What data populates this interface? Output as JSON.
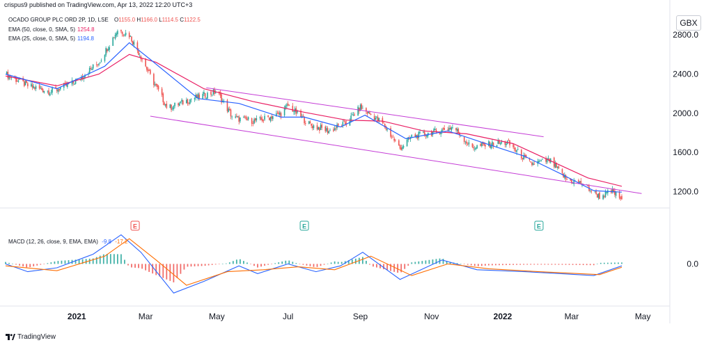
{
  "header": {
    "publisher": "crispus9 published on TradingView.com, Apr 13, 2022 12:20 UTC+3"
  },
  "legend": {
    "symbol": "OCADO GROUP PLC ORD 2P, 1D, LSE",
    "ohlc": [
      {
        "key": "O",
        "value": "1155.0"
      },
      {
        "key": "H",
        "value": "1166.0"
      },
      {
        "key": "L",
        "value": "1114.5"
      },
      {
        "key": "C",
        "value": "1122.5"
      }
    ],
    "ema50_label": "EMA (50, close, 0, SMA, 5)",
    "ema50_value": "1254.8",
    "ema25_label": "EMA (25, close, 0, SMA, 5)",
    "ema25_value": "1194.8",
    "macd_label": "MACD (12, 26, close, 9, EMA, EMA)",
    "macd_value": "-9.8",
    "signal_value": "-17.2"
  },
  "currency_badge": "GBX",
  "footer": {
    "brand": "TradingView"
  },
  "colors": {
    "up": "#26a69a",
    "down": "#ef5350",
    "ema50": "#e91e63",
    "ema25": "#2962ff",
    "channel": "#c43bd6",
    "macd_line": "#2962ff",
    "signal_line": "#ff6d00",
    "hist_up": "#26a69a",
    "hist_down": "#ef5350",
    "earnings": "#26a69a",
    "earnings_down": "#ef5350"
  },
  "chart_data": [
    {
      "type": "candlestick",
      "title": "OCADO GROUP PLC ORD 2P, 1D, LSE",
      "x_ticks": [
        "2021",
        "Mar",
        "May",
        "Jul",
        "Sep",
        "Nov",
        "2022",
        "Mar",
        "May"
      ],
      "x_tick_dates": [
        "2021-01-01",
        "2021-03-01",
        "2021-05-01",
        "2021-07-01",
        "2021-09-01",
        "2021-11-01",
        "2022-01-01",
        "2022-03-01",
        "2022-05-01"
      ],
      "y_ticks": [
        "2800.0",
        "2400.0",
        "2000.0",
        "1600.0",
        "1200.0"
      ],
      "ylim": [
        1040,
        3000
      ],
      "close_path": [
        {
          "date": "2020-11-01",
          "close": 2400
        },
        {
          "date": "2020-11-20",
          "close": 2280
        },
        {
          "date": "2020-12-10",
          "close": 2220
        },
        {
          "date": "2020-12-31",
          "close": 2320
        },
        {
          "date": "2021-01-20",
          "close": 2520
        },
        {
          "date": "2021-02-05",
          "close": 2850
        },
        {
          "date": "2021-02-15",
          "close": 2800
        },
        {
          "date": "2021-02-25",
          "close": 2580
        },
        {
          "date": "2021-03-05",
          "close": 2380
        },
        {
          "date": "2021-03-20",
          "close": 2050
        },
        {
          "date": "2021-04-10",
          "close": 2150
        },
        {
          "date": "2021-05-01",
          "close": 2220
        },
        {
          "date": "2021-05-15",
          "close": 1950
        },
        {
          "date": "2021-06-05",
          "close": 1920
        },
        {
          "date": "2021-06-25",
          "close": 2000
        },
        {
          "date": "2021-07-01",
          "close": 2080
        },
        {
          "date": "2021-07-20",
          "close": 1880
        },
        {
          "date": "2021-08-05",
          "close": 1820
        },
        {
          "date": "2021-08-20",
          "close": 1900
        },
        {
          "date": "2021-09-01",
          "close": 2060
        },
        {
          "date": "2021-09-20",
          "close": 1900
        },
        {
          "date": "2021-10-05",
          "close": 1640
        },
        {
          "date": "2021-10-15",
          "close": 1760
        },
        {
          "date": "2021-11-01",
          "close": 1800
        },
        {
          "date": "2021-11-20",
          "close": 1860
        },
        {
          "date": "2021-12-05",
          "close": 1650
        },
        {
          "date": "2021-12-20",
          "close": 1680
        },
        {
          "date": "2022-01-05",
          "close": 1700
        },
        {
          "date": "2022-01-25",
          "close": 1480
        },
        {
          "date": "2022-02-10",
          "close": 1520
        },
        {
          "date": "2022-02-25",
          "close": 1320
        },
        {
          "date": "2022-03-10",
          "close": 1280
        },
        {
          "date": "2022-03-25",
          "close": 1150
        },
        {
          "date": "2022-04-05",
          "close": 1200
        },
        {
          "date": "2022-04-13",
          "close": 1122.5
        }
      ],
      "ema50_path": [
        {
          "date": "2020-11-01",
          "value": 2380
        },
        {
          "date": "2020-12-15",
          "value": 2280
        },
        {
          "date": "2021-01-20",
          "value": 2400
        },
        {
          "date": "2021-02-15",
          "value": 2600
        },
        {
          "date": "2021-03-10",
          "value": 2520
        },
        {
          "date": "2021-04-20",
          "value": 2250
        },
        {
          "date": "2021-06-01",
          "value": 2120
        },
        {
          "date": "2021-07-15",
          "value": 2010
        },
        {
          "date": "2021-08-20",
          "value": 1930
        },
        {
          "date": "2021-09-20",
          "value": 1920
        },
        {
          "date": "2021-10-25",
          "value": 1820
        },
        {
          "date": "2021-12-01",
          "value": 1790
        },
        {
          "date": "2022-01-10",
          "value": 1690
        },
        {
          "date": "2022-02-10",
          "value": 1520
        },
        {
          "date": "2022-03-15",
          "value": 1340
        },
        {
          "date": "2022-04-13",
          "value": 1254.8
        }
      ],
      "ema25_path": [
        {
          "date": "2020-11-01",
          "value": 2400
        },
        {
          "date": "2020-12-15",
          "value": 2250
        },
        {
          "date": "2021-01-25",
          "value": 2480
        },
        {
          "date": "2021-02-15",
          "value": 2720
        },
        {
          "date": "2021-03-05",
          "value": 2550
        },
        {
          "date": "2021-04-15",
          "value": 2150
        },
        {
          "date": "2021-05-20",
          "value": 2100
        },
        {
          "date": "2021-06-25",
          "value": 1960
        },
        {
          "date": "2021-07-15",
          "value": 1960
        },
        {
          "date": "2021-08-15",
          "value": 1860
        },
        {
          "date": "2021-09-05",
          "value": 1980
        },
        {
          "date": "2021-10-10",
          "value": 1740
        },
        {
          "date": "2021-11-15",
          "value": 1820
        },
        {
          "date": "2021-12-15",
          "value": 1700
        },
        {
          "date": "2022-01-20",
          "value": 1560
        },
        {
          "date": "2022-02-20",
          "value": 1380
        },
        {
          "date": "2022-03-20",
          "value": 1210
        },
        {
          "date": "2022-04-13",
          "value": 1194.8
        }
      ],
      "channel_upper": [
        {
          "date": "2021-04-22",
          "value": 2260
        },
        {
          "date": "2022-02-05",
          "value": 1760
        }
      ],
      "channel_lower": [
        {
          "date": "2021-03-05",
          "value": 1970
        },
        {
          "date": "2022-04-30",
          "value": 1180
        }
      ],
      "earnings_markers": [
        {
          "date": "2021-02-20",
          "label": "E",
          "direction": "down"
        },
        {
          "date": "2021-07-15",
          "label": "E",
          "direction": "up"
        },
        {
          "date": "2022-02-01",
          "label": "E",
          "direction": "up"
        }
      ],
      "last_ohlc": {
        "open": 1155.0,
        "high": 1166.0,
        "low": 1114.5,
        "close": 1122.5
      }
    },
    {
      "type": "line",
      "title": "MACD (12, 26, close, 9, EMA, EMA)",
      "y_ticks": [
        "0.0"
      ],
      "ylim": [
        -210,
        170
      ],
      "series": [
        {
          "name": "MACD",
          "values_path": [
            {
              "date": "2020-11-01",
              "value": 0
            },
            {
              "date": "2020-11-20",
              "value": -40
            },
            {
              "date": "2020-12-15",
              "value": -20
            },
            {
              "date": "2021-01-15",
              "value": 50
            },
            {
              "date": "2021-02-08",
              "value": 150
            },
            {
              "date": "2021-02-25",
              "value": 60
            },
            {
              "date": "2021-03-25",
              "value": -150
            },
            {
              "date": "2021-04-20",
              "value": -90
            },
            {
              "date": "2021-05-20",
              "value": -10
            },
            {
              "date": "2021-06-05",
              "value": -50
            },
            {
              "date": "2021-07-01",
              "value": 0
            },
            {
              "date": "2021-07-25",
              "value": -40
            },
            {
              "date": "2021-08-15",
              "value": -10
            },
            {
              "date": "2021-09-03",
              "value": 60
            },
            {
              "date": "2021-10-05",
              "value": -80
            },
            {
              "date": "2021-11-10",
              "value": 20
            },
            {
              "date": "2021-12-10",
              "value": -30
            },
            {
              "date": "2022-01-20",
              "value": -40
            },
            {
              "date": "2022-02-20",
              "value": -50
            },
            {
              "date": "2022-03-20",
              "value": -60
            },
            {
              "date": "2022-04-13",
              "value": -9.8
            }
          ]
        },
        {
          "name": "Signal",
          "values_path": [
            {
              "date": "2020-11-01",
              "value": -10
            },
            {
              "date": "2020-12-15",
              "value": -35
            },
            {
              "date": "2021-01-25",
              "value": 40
            },
            {
              "date": "2021-02-15",
              "value": 130
            },
            {
              "date": "2021-03-10",
              "value": 20
            },
            {
              "date": "2021-04-05",
              "value": -110
            },
            {
              "date": "2021-05-10",
              "value": -40
            },
            {
              "date": "2021-06-10",
              "value": -30
            },
            {
              "date": "2021-07-10",
              "value": -15
            },
            {
              "date": "2021-08-10",
              "value": -30
            },
            {
              "date": "2021-09-10",
              "value": 40
            },
            {
              "date": "2021-10-15",
              "value": -60
            },
            {
              "date": "2021-11-15",
              "value": 0
            },
            {
              "date": "2021-12-20",
              "value": -25
            },
            {
              "date": "2022-02-01",
              "value": -40
            },
            {
              "date": "2022-03-25",
              "value": -55
            },
            {
              "date": "2022-04-13",
              "value": -17.2
            }
          ]
        }
      ]
    }
  ]
}
